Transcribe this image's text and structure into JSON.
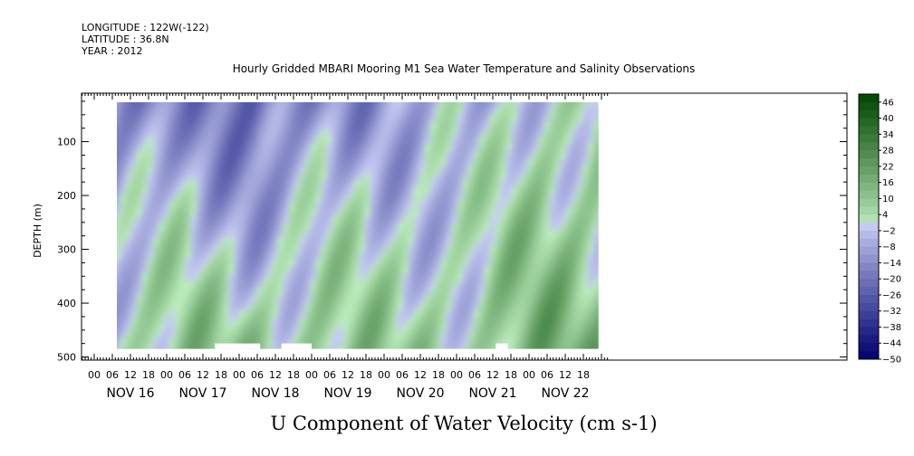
{
  "header": {
    "longitude": "LONGITUDE : 122W(-122)",
    "latitude": "LATITUDE : 36.8N",
    "year": "YEAR : 2012"
  },
  "chart_data": {
    "type": "heatmap",
    "title": "Hourly Gridded MBARI Mooring M1 Sea Water Temperature and Salinity Observations",
    "xlabel": "U Component of Water Velocity (cm s-1)",
    "ylabel": "DEPTH (m)",
    "y_ticks": [
      100,
      200,
      300,
      400,
      500
    ],
    "y_tick_labels": [
      "100",
      "200",
      "300",
      "400",
      "500"
    ],
    "ylim": [
      500,
      10
    ],
    "x_hour_labels": [
      "00",
      "06",
      "12",
      "18",
      "00",
      "06",
      "12",
      "18",
      "00",
      "06",
      "12",
      "18",
      "00",
      "06",
      "12",
      "18",
      "00",
      "06",
      "12",
      "18",
      "00",
      "06",
      "12",
      "18",
      "00",
      "06",
      "12",
      "18"
    ],
    "x_day_labels": [
      "NOV 16",
      "NOV 17",
      "NOV 18",
      "NOV 19",
      "NOV 20",
      "NOV 21",
      "NOV 22"
    ],
    "colorbar": {
      "levels": [
        46,
        40,
        34,
        28,
        22,
        16,
        10,
        4,
        -2,
        -8,
        -14,
        -20,
        -26,
        -32,
        -38,
        -44,
        -50
      ],
      "min": -50,
      "max": 49
    },
    "data_extent": {
      "start": "NOV 16 05:00",
      "end": "NOV 22 23:00",
      "depth_top": 20,
      "depth_bottom": 485
    },
    "field": {
      "day_centres_hours_from_nov16": [
        5,
        28,
        52,
        76,
        100,
        124,
        148
      ],
      "segments": [
        {
          "label": "NOV 16",
          "u_top": -20,
          "u_bottom": 6
        },
        {
          "label": "NOV 17",
          "u_top": -10,
          "u_bottom": 8
        },
        {
          "label": "NOV 18",
          "u_top": -24,
          "u_bottom": 10
        },
        {
          "label": "NOV 19",
          "u_top": -12,
          "u_bottom": 10
        },
        {
          "label": "NOV 20",
          "u_top": -8,
          "u_bottom": 6
        },
        {
          "label": "NOV 21",
          "u_top": -8,
          "u_bottom": 8
        },
        {
          "label": "NOV 22",
          "u_top": 4,
          "u_bottom": 14
        }
      ]
    }
  }
}
